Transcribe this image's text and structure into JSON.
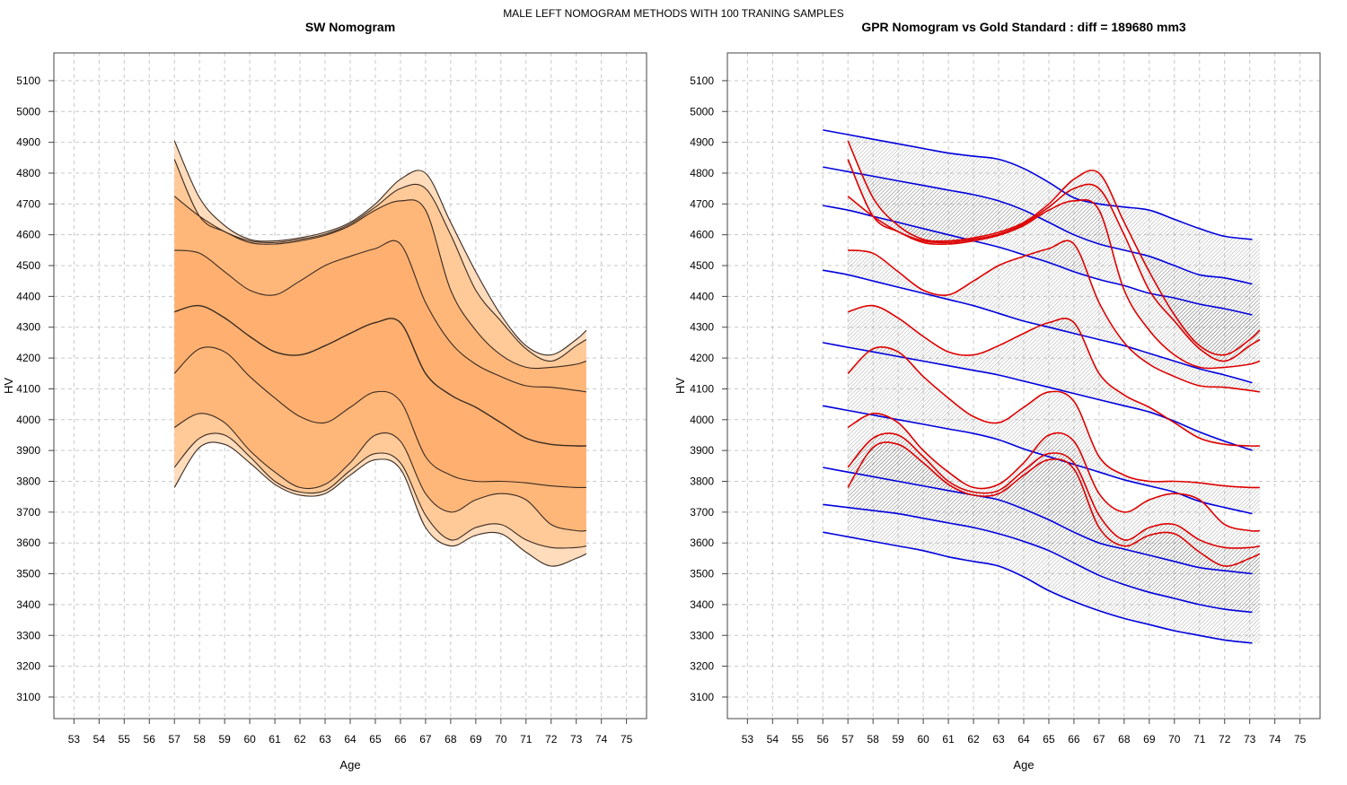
{
  "suptitle": "MALE LEFT NOMOGRAM METHODS WITH 100 TRANING SAMPLES",
  "colors": {
    "sw_band_outer": "#ffdcbc",
    "sw_band_mid": "#ffc998",
    "sw_band_inner": "#ffb679",
    "sw_band_core": "#ffb070",
    "sw_line": "#3a2a20",
    "gold_line": "#dd0000",
    "gpr_line": "#0000dd",
    "hatch": "#888888",
    "grid": "#c8c8c8"
  },
  "chart_data": [
    {
      "type": "area",
      "title": "SW Nomogram",
      "xlabel": "Age",
      "ylabel": "HV",
      "xlim": [
        52.2,
        75.8
      ],
      "ylim": [
        3030,
        5190
      ],
      "xticks": [
        53,
        54,
        55,
        56,
        57,
        58,
        59,
        60,
        61,
        62,
        63,
        64,
        65,
        66,
        67,
        68,
        69,
        70,
        71,
        72,
        73,
        74,
        75
      ],
      "yticks": [
        3100,
        3200,
        3300,
        3400,
        3500,
        3600,
        3700,
        3800,
        3900,
        4000,
        4100,
        4200,
        4300,
        4400,
        4500,
        4600,
        4700,
        4800,
        4900,
        5000,
        5100
      ],
      "grid": true,
      "x": [
        57,
        58,
        59,
        60,
        61,
        62,
        63,
        64,
        65,
        66,
        67,
        68,
        69,
        70,
        71,
        72,
        73,
        73.4
      ],
      "series": [
        {
          "values": [
            4905,
            4720,
            4630,
            4585,
            4580,
            4590,
            4608,
            4640,
            4700,
            4780,
            4800,
            4640,
            4480,
            4340,
            4240,
            4210,
            4260,
            4290
          ]
        },
        {
          "values": [
            4845,
            4660,
            4610,
            4580,
            4575,
            4585,
            4602,
            4635,
            4690,
            4750,
            4750,
            4600,
            4420,
            4320,
            4230,
            4190,
            4240,
            4260
          ]
        },
        {
          "values": [
            4725,
            4660,
            4610,
            4575,
            4570,
            4580,
            4598,
            4630,
            4680,
            4710,
            4680,
            4420,
            4290,
            4210,
            4170,
            4170,
            4180,
            4190
          ]
        },
        {
          "values": [
            4550,
            4540,
            4480,
            4420,
            4405,
            4450,
            4500,
            4530,
            4555,
            4570,
            4380,
            4250,
            4180,
            4140,
            4110,
            4105,
            4095,
            4090
          ]
        },
        {
          "values": [
            4350,
            4370,
            4330,
            4270,
            4220,
            4210,
            4240,
            4280,
            4315,
            4315,
            4150,
            4080,
            4040,
            3990,
            3940,
            3920,
            3915,
            3915
          ]
        },
        {
          "values": [
            4150,
            4230,
            4220,
            4140,
            4070,
            4010,
            3990,
            4040,
            4090,
            4060,
            3880,
            3820,
            3800,
            3800,
            3795,
            3785,
            3780,
            3780
          ]
        },
        {
          "values": [
            3975,
            4020,
            3990,
            3900,
            3830,
            3780,
            3790,
            3860,
            3950,
            3930,
            3760,
            3700,
            3740,
            3760,
            3740,
            3660,
            3640,
            3640
          ]
        },
        {
          "values": [
            3845,
            3940,
            3950,
            3880,
            3800,
            3765,
            3770,
            3835,
            3890,
            3860,
            3690,
            3610,
            3650,
            3660,
            3610,
            3585,
            3585,
            3590
          ]
        },
        {
          "values": [
            3780,
            3910,
            3920,
            3860,
            3790,
            3755,
            3760,
            3820,
            3870,
            3840,
            3650,
            3590,
            3625,
            3630,
            3570,
            3525,
            3550,
            3565
          ]
        }
      ]
    },
    {
      "type": "line",
      "title": "GPR Nomogram vs Gold Standard : diff = 189680 mm3",
      "xlabel": "Age",
      "ylabel": "HV",
      "xlim": [
        52.2,
        75.8
      ],
      "ylim": [
        3030,
        5190
      ],
      "xticks": [
        53,
        54,
        55,
        56,
        57,
        58,
        59,
        60,
        61,
        62,
        63,
        64,
        65,
        66,
        67,
        68,
        69,
        70,
        71,
        72,
        73,
        74,
        75
      ],
      "yticks": [
        3100,
        3200,
        3300,
        3400,
        3500,
        3600,
        3700,
        3800,
        3900,
        4000,
        4100,
        4200,
        4300,
        4400,
        4500,
        4600,
        4700,
        4800,
        4900,
        5000,
        5100
      ],
      "grid": true,
      "gold_x": [
        57,
        58,
        59,
        60,
        61,
        62,
        63,
        64,
        65,
        66,
        67,
        68,
        69,
        70,
        71,
        72,
        73,
        73.4
      ],
      "gpr_x": [
        56,
        57,
        58,
        59,
        60,
        61,
        62,
        63,
        64,
        65,
        66,
        67,
        68,
        69,
        70,
        71,
        72,
        73.1
      ],
      "series": [
        {
          "gold": [
            4905,
            4720,
            4630,
            4585,
            4580,
            4590,
            4608,
            4640,
            4700,
            4780,
            4800,
            4640,
            4480,
            4340,
            4240,
            4210,
            4260,
            4290
          ],
          "gpr": [
            4940,
            4925,
            4910,
            4895,
            4880,
            4865,
            4855,
            4845,
            4815,
            4770,
            4720,
            4700,
            4690,
            4680,
            4650,
            4620,
            4595,
            4585
          ]
        },
        {
          "gold": [
            4845,
            4660,
            4610,
            4580,
            4575,
            4585,
            4602,
            4635,
            4690,
            4750,
            4750,
            4600,
            4420,
            4320,
            4230,
            4190,
            4240,
            4260
          ],
          "gpr": [
            4820,
            4805,
            4790,
            4775,
            4760,
            4745,
            4730,
            4710,
            4680,
            4640,
            4600,
            4570,
            4550,
            4530,
            4500,
            4470,
            4460,
            4440
          ]
        },
        {
          "gold": [
            4725,
            4660,
            4610,
            4575,
            4570,
            4580,
            4598,
            4630,
            4680,
            4710,
            4680,
            4420,
            4290,
            4210,
            4170,
            4170,
            4180,
            4190
          ],
          "gpr": [
            4695,
            4680,
            4660,
            4640,
            4620,
            4600,
            4580,
            4560,
            4535,
            4510,
            4480,
            4455,
            4435,
            4410,
            4395,
            4375,
            4360,
            4340
          ]
        },
        {
          "gold": [
            4550,
            4540,
            4480,
            4420,
            4405,
            4450,
            4500,
            4530,
            4555,
            4570,
            4380,
            4250,
            4180,
            4140,
            4110,
            4105,
            4095,
            4090
          ],
          "gpr": [
            4485,
            4470,
            4450,
            4430,
            4410,
            4390,
            4370,
            4345,
            4320,
            4300,
            4280,
            4260,
            4240,
            4215,
            4190,
            4165,
            4145,
            4120
          ]
        },
        {
          "gold": [
            4350,
            4370,
            4330,
            4270,
            4220,
            4210,
            4240,
            4280,
            4315,
            4315,
            4150,
            4080,
            4040,
            3990,
            3940,
            3920,
            3915,
            3915
          ],
          "gpr": [
            4250,
            4235,
            4220,
            4205,
            4190,
            4175,
            4160,
            4145,
            4125,
            4105,
            4085,
            4065,
            4045,
            4025,
            3995,
            3960,
            3930,
            3900
          ]
        },
        {
          "gold": [
            4150,
            4230,
            4220,
            4140,
            4070,
            4010,
            3990,
            4040,
            4090,
            4060,
            3880,
            3820,
            3800,
            3800,
            3795,
            3785,
            3780,
            3780
          ],
          "gpr": [
            4045,
            4030,
            4015,
            4000,
            3985,
            3970,
            3955,
            3935,
            3905,
            3880,
            3855,
            3830,
            3805,
            3785,
            3765,
            3735,
            3715,
            3695
          ]
        },
        {
          "gold": [
            3975,
            4020,
            3990,
            3900,
            3830,
            3780,
            3790,
            3860,
            3950,
            3930,
            3760,
            3700,
            3740,
            3760,
            3740,
            3660,
            3640,
            3640
          ],
          "gpr": [
            3845,
            3830,
            3815,
            3800,
            3785,
            3770,
            3755,
            3740,
            3710,
            3675,
            3635,
            3600,
            3580,
            3560,
            3540,
            3520,
            3510,
            3500
          ]
        },
        {
          "gold": [
            3845,
            3940,
            3950,
            3880,
            3800,
            3765,
            3770,
            3835,
            3890,
            3860,
            3690,
            3610,
            3650,
            3660,
            3610,
            3585,
            3585,
            3590
          ],
          "gpr": [
            3725,
            3715,
            3705,
            3695,
            3680,
            3665,
            3650,
            3630,
            3605,
            3575,
            3535,
            3495,
            3465,
            3440,
            3420,
            3400,
            3385,
            3375
          ]
        },
        {
          "gold": [
            3780,
            3910,
            3920,
            3860,
            3790,
            3755,
            3760,
            3820,
            3870,
            3840,
            3650,
            3590,
            3625,
            3630,
            3570,
            3525,
            3550,
            3565
          ],
          "gpr": [
            3635,
            3620,
            3605,
            3590,
            3575,
            3555,
            3540,
            3525,
            3490,
            3445,
            3410,
            3380,
            3355,
            3335,
            3315,
            3300,
            3285,
            3275
          ]
        }
      ]
    }
  ]
}
